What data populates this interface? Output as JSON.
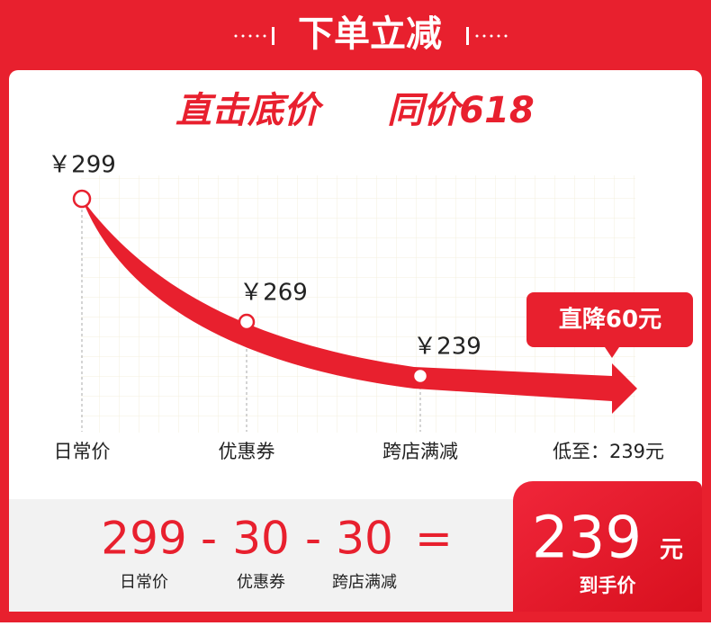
{
  "header": {
    "title": "下单立减"
  },
  "card": {
    "headline": [
      "直击底价",
      "同价618"
    ],
    "points": [
      {
        "price": "￥299",
        "label": "日常价"
      },
      {
        "price": "￥269",
        "label": "优惠券"
      },
      {
        "price": "￥239",
        "label": "跨店满减"
      }
    ],
    "badge": "直降60元",
    "final_label": "低至：239元"
  },
  "formula": {
    "terms": [
      {
        "value": "299",
        "label": "日常价"
      },
      {
        "value": "30",
        "label": "优惠券"
      },
      {
        "value": "30",
        "label": "跨店满减"
      }
    ],
    "operators": [
      "-",
      "-",
      "="
    ],
    "result": {
      "value": "239",
      "unit": "元",
      "label": "到手价"
    }
  }
}
